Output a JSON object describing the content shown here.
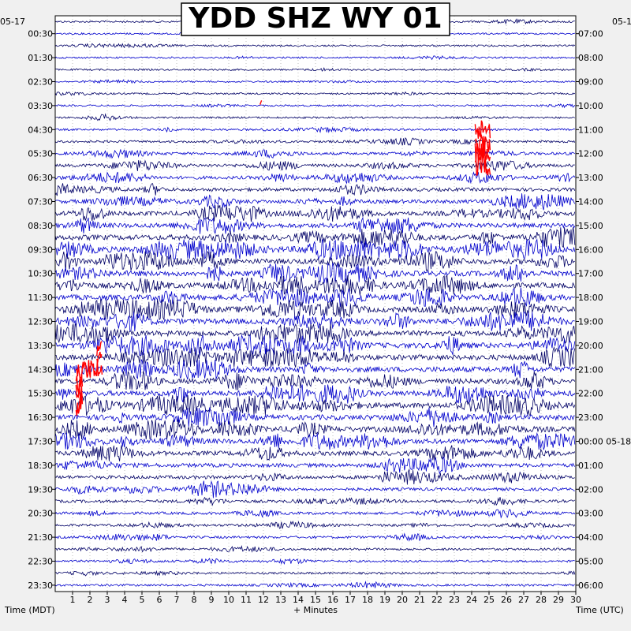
{
  "chart_data": {
    "type": "line",
    "title": "YDD SHZ WY 01",
    "left_date": "05-17",
    "right_date_top": "05-1",
    "right_date_change": "05-18",
    "left_axis_label": "Time (MDT)",
    "right_axis_label": "Time (UTC)",
    "x_label": "+ Minutes",
    "x_ticks": [
      "1",
      "2",
      "3",
      "4",
      "5",
      "6",
      "7",
      "8",
      "9",
      "10",
      "11",
      "12",
      "13",
      "14",
      "15",
      "16",
      "17",
      "18",
      "19",
      "20",
      "21",
      "22",
      "23",
      "24",
      "25",
      "26",
      "27",
      "28",
      "29",
      "30"
    ],
    "xlim": [
      0,
      30
    ],
    "left_ticks": [
      "00:30",
      "01:30",
      "02:30",
      "03:30",
      "04:30",
      "05:30",
      "06:30",
      "07:30",
      "08:30",
      "09:30",
      "10:30",
      "11:30",
      "12:30",
      "13:30",
      "14:30",
      "15:30",
      "16:30",
      "17:30",
      "18:30",
      "19:30",
      "20:30",
      "21:30",
      "22:30",
      "23:30"
    ],
    "right_ticks": [
      "07:00",
      "08:00",
      "09:00",
      "10:00",
      "11:00",
      "12:00",
      "13:00",
      "14:00",
      "15:00",
      "16:00",
      "17:00",
      "18:00",
      "19:00",
      "20:00",
      "21:00",
      "22:00",
      "23:00",
      "00:00",
      "01:00",
      "02:00",
      "03:00",
      "04:00",
      "05:00",
      "06:00"
    ],
    "trace_count": 48,
    "trace_colors": [
      "#000066",
      "#0000cc",
      "#ff0000"
    ],
    "trace_activity": [
      0.15,
      0.12,
      0.12,
      0.12,
      0.12,
      0.1,
      0.12,
      0.12,
      0.15,
      0.18,
      0.25,
      0.35,
      0.45,
      0.5,
      0.55,
      0.6,
      0.75,
      0.85,
      1.0,
      1.0,
      1.0,
      1.0,
      1.0,
      1.0,
      1.0,
      1.0,
      1.0,
      1.0,
      1.0,
      1.0,
      1.0,
      1.0,
      1.0,
      1.0,
      1.0,
      0.9,
      0.8,
      0.65,
      0.55,
      0.45,
      0.4,
      0.35,
      0.3,
      0.28,
      0.25,
      0.22,
      0.2,
      0.2
    ],
    "clipped_events": [
      {
        "trace": 7,
        "minute_start": 11.8,
        "minute_end": 11.9
      },
      {
        "trace": 9,
        "minute_start": 24.2,
        "minute_end": 25.1
      },
      {
        "trace": 10,
        "minute_start": 24.2,
        "minute_end": 25.1
      },
      {
        "trace": 11,
        "minute_start": 24.2,
        "minute_end": 25.1
      },
      {
        "trace": 12,
        "minute_start": 24.2,
        "minute_end": 25.1
      },
      {
        "trace": 27,
        "minute_start": 2.4,
        "minute_end": 2.7
      },
      {
        "trace": 28,
        "minute_start": 2.4,
        "minute_end": 2.7
      },
      {
        "trace": 29,
        "minute_start": 1.2,
        "minute_end": 2.7
      },
      {
        "trace": 30,
        "minute_start": 1.2,
        "minute_end": 1.6
      },
      {
        "trace": 31,
        "minute_start": 1.2,
        "minute_end": 1.6
      },
      {
        "trace": 32,
        "minute_start": 1.2,
        "minute_end": 1.6
      }
    ]
  }
}
